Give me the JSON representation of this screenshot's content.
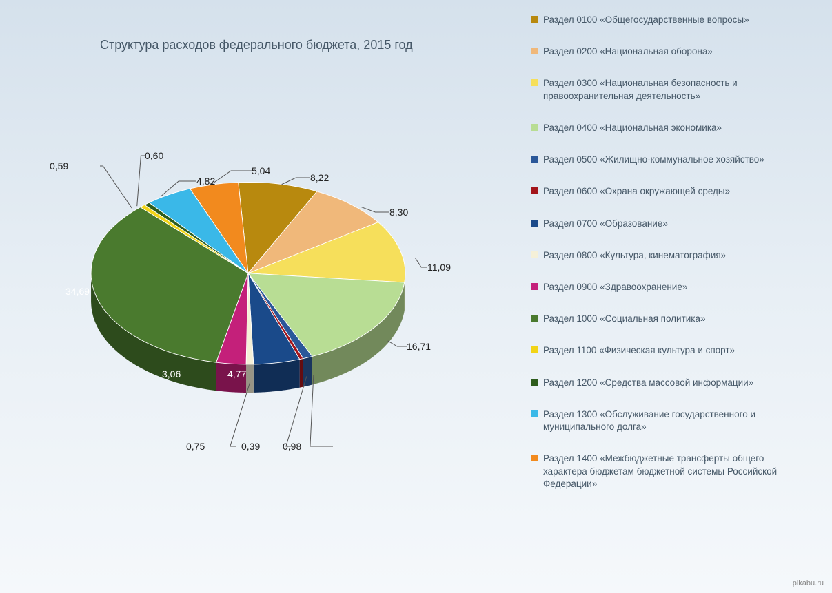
{
  "chart": {
    "title": "Структура расходов федерального бюджета, 2015 год",
    "type": "pie",
    "title_fontsize": 18,
    "title_color": "#465868",
    "label_fontsize": 14,
    "background_gradient": [
      "#d5e1ec",
      "#e8eff5",
      "#f5f8fb"
    ],
    "slices": [
      {
        "label": "Раздел 0100 «Общегосударственные вопросы»",
        "value": 8.22,
        "color": "#b8890e",
        "value_text": "8,22"
      },
      {
        "label": "Раздел 0200 «Национальная оборона»",
        "value": 8.3,
        "color": "#f0b87a",
        "value_text": "8,30"
      },
      {
        "label": "Раздел 0300 «Национальная безопасность и правоохранительная деятельность»",
        "value": 11.09,
        "color": "#f6df5b",
        "value_text": "11,09"
      },
      {
        "label": "Раздел 0400 «Национальная экономика»",
        "value": 16.71,
        "color": "#b8dd94",
        "value_text": "16,71"
      },
      {
        "label": "Раздел 0500 «Жилищно-коммунальное хозяйство»",
        "value": 0.98,
        "color": "#2a5799",
        "value_text": "0,98"
      },
      {
        "label": "Раздел 0600 «Охрана окружающей среды»",
        "value": 0.39,
        "color": "#a3141b",
        "value_text": "0,39"
      },
      {
        "label": "Раздел 0700 «Образование»",
        "value": 4.77,
        "color": "#1a4a8a",
        "value_text": "4,77"
      },
      {
        "label": "Раздел 0800 «Культура, кинематография»",
        "value": 0.75,
        "color": "#f5f0d8",
        "value_text": "0,75"
      },
      {
        "label": "Раздел 0900 «Здравоохранение»",
        "value": 3.06,
        "color": "#c4207a",
        "value_text": "3,06"
      },
      {
        "label": "Раздел 1000 «Социальная политика»",
        "value": 34.69,
        "color": "#4a7a2e",
        "value_text": "34,69"
      },
      {
        "label": "Раздел 1100 «Физическая культура и спорт»",
        "value": 0.59,
        "color": "#f2d417",
        "value_text": "0,59"
      },
      {
        "label": "Раздел 1200 «Средства массовой информации»",
        "value": 0.6,
        "color": "#2d5c1c",
        "value_text": "0,60"
      },
      {
        "label": "Раздел 1300 «Обслуживание государственного и муниципального долга»",
        "value": 4.82,
        "color": "#3ab8e8",
        "value_text": "4,82"
      },
      {
        "label": "Раздел 1400 «Межбюджетные трансферты общего характера бюджетам бюджетной системы Российской Федерации»",
        "value": 5.04,
        "color": "#f28a1e",
        "value_text": "5,04"
      }
    ],
    "legend_fontsize": 13.5,
    "legend_color": "#465868",
    "legend_swatch_size": 10
  },
  "watermark": "pikabu.ru"
}
